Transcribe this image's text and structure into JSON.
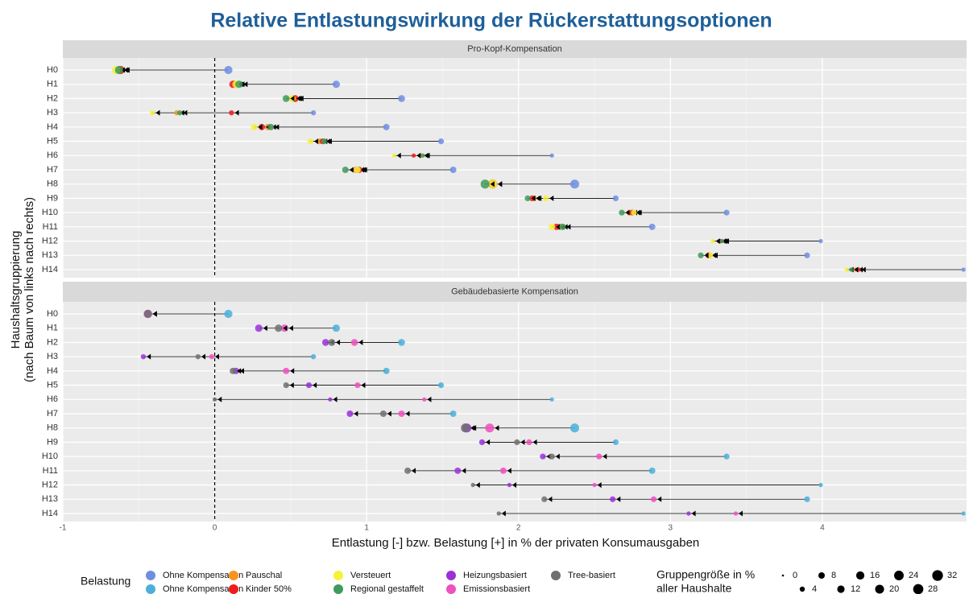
{
  "chart_data": {
    "type": "dot",
    "title": "Relative Entlastungswirkung der Rückerstattungsoptionen",
    "x_label": "Entlastung [-] bzw. Belastung [+] in % der privaten Konsumausgaben",
    "y_label": [
      "Haushaltsgruppierung",
      "(nach Baum von links nach rechts)"
    ],
    "categories": [
      "H0",
      "H1",
      "H2",
      "H3",
      "H4",
      "H5",
      "H6",
      "H7",
      "H8",
      "H9",
      "H10",
      "H11",
      "H12",
      "H13",
      "H14"
    ],
    "sizes": [
      16,
      12,
      10,
      4,
      8,
      6,
      2,
      8,
      20,
      6,
      6,
      8,
      2,
      6,
      2
    ],
    "xlim": [
      -1,
      4.95
    ],
    "xticks": [
      -1,
      0,
      1,
      2,
      3,
      4
    ],
    "grid": true,
    "legend_title": "Belastung",
    "size_legend": {
      "title": [
        "Gruppengröße in %",
        "aller Haushalte"
      ],
      "values": [
        0,
        4,
        8,
        12,
        16,
        20,
        24,
        28,
        32
      ]
    },
    "panels": [
      {
        "title": "Pro-Kopf-Kompensation",
        "series": [
          {
            "name": "Ohne Kompensation",
            "color": "#6e8ee0",
            "values": [
              0.09,
              0.8,
              1.23,
              0.65,
              1.13,
              1.49,
              2.22,
              1.57,
              2.37,
              2.64,
              3.37,
              2.88,
              3.99,
              3.9,
              4.93
            ]
          },
          {
            "name": "Pauschal",
            "color": "#f7941d",
            "values": [
              -0.62,
              0.13,
              0.52,
              -0.25,
              0.35,
              0.69,
              1.36,
              0.93,
              1.83,
              2.1,
              2.73,
              2.27,
              3.32,
              3.26,
              4.22
            ]
          },
          {
            "name": "Kinder 50%",
            "color": "#ee1c1c",
            "values": [
              -0.62,
              0.12,
              0.53,
              0.11,
              0.31,
              0.71,
              1.31,
              0.95,
              1.83,
              2.09,
              2.75,
              2.25,
              3.33,
              3.25,
              4.24
            ]
          },
          {
            "name": "Versteuert",
            "color": "#f5f23a",
            "values": [
              -0.65,
              0.14,
              0.51,
              -0.41,
              0.26,
              0.63,
              1.18,
              0.94,
              1.83,
              2.18,
              2.76,
              2.22,
              3.28,
              3.26,
              4.16
            ]
          },
          {
            "name": "Regional gestaffelt",
            "color": "#3f9a5c",
            "values": [
              -0.63,
              0.16,
              0.47,
              -0.23,
              0.37,
              0.72,
              1.37,
              0.86,
              1.78,
              2.06,
              2.68,
              2.29,
              3.34,
              3.2,
              4.19
            ]
          }
        ]
      },
      {
        "title": "Gebäudebasierte Kompensation",
        "series": [
          {
            "name": "Ohne Kompensation",
            "color": "#4ab0da",
            "values": [
              0.09,
              0.8,
              1.23,
              0.65,
              1.13,
              1.49,
              2.22,
              1.57,
              2.37,
              2.64,
              3.37,
              2.88,
              3.99,
              3.9,
              4.93
            ]
          },
          {
            "name": "Heizungsbasiert",
            "color": "#9b30d9",
            "values": [
              -0.44,
              0.29,
              0.73,
              -0.47,
              0.14,
              0.62,
              0.76,
              0.89,
              1.66,
              1.76,
              2.16,
              1.6,
              1.94,
              2.62,
              3.12
            ]
          },
          {
            "name": "Emissionsbasiert",
            "color": "#f050c0",
            "values": [
              -0.44,
              0.46,
              0.92,
              -0.02,
              0.47,
              0.94,
              1.38,
              1.23,
              1.81,
              2.07,
              2.53,
              1.9,
              2.5,
              2.89,
              3.43
            ]
          },
          {
            "name": "Tree-basiert",
            "color": "#707070",
            "values": [
              -0.44,
              0.42,
              0.77,
              -0.11,
              0.12,
              0.47,
              0.0,
              1.11,
              1.65,
              1.99,
              2.22,
              1.27,
              1.7,
              2.17,
              1.87
            ]
          }
        ]
      }
    ]
  }
}
